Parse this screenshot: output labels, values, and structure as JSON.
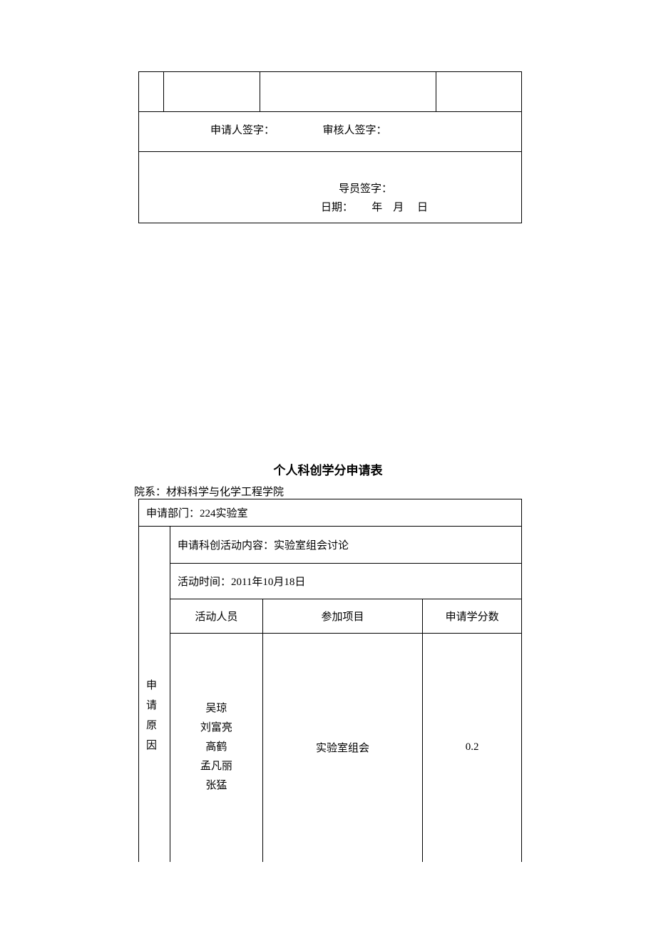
{
  "topTable": {
    "signatureRow": {
      "applicantLabel": "申请人签字：",
      "reviewerLabel": "审核人签字："
    },
    "bottomRow": {
      "supervisorLabel": "导员签字：",
      "dateLabel": "日期：",
      "yearLabel": "年",
      "monthLabel": "月",
      "dayLabel": "日"
    }
  },
  "formTitle": "个人科创学分申请表",
  "departmentLine": {
    "label": "院系：",
    "value": "材料科学与化学工程学院"
  },
  "mainTable": {
    "applyDept": {
      "label": "申请部门：",
      "value": "224实验室"
    },
    "verticalLabel": [
      "申",
      "请",
      "原",
      "因"
    ],
    "content": {
      "label": "申请科创活动内容：",
      "value": "实验室组会讨论"
    },
    "activityTime": {
      "label": "活动时间：",
      "value": "2011年10月18日"
    },
    "headers": {
      "col1": "活动人员",
      "col2": "参加项目",
      "col3": "申请学分数"
    },
    "data": {
      "names": [
        "吴琼",
        "刘富亮",
        "高鹤",
        "孟凡丽",
        "张猛"
      ],
      "project": "实验室组会",
      "credits": "0.2"
    }
  },
  "colors": {
    "text": "#000000",
    "background": "#ffffff",
    "border": "#000000"
  }
}
